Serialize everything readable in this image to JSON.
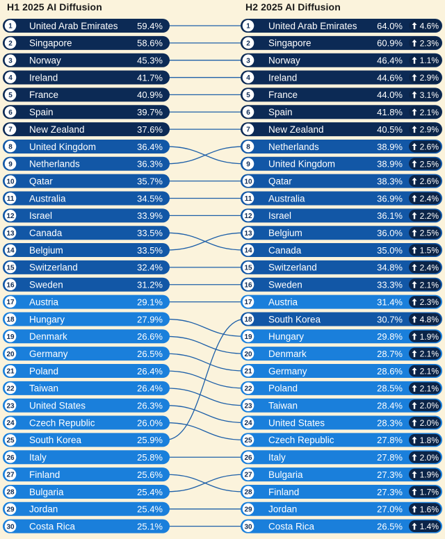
{
  "header": {
    "left_title": "H1 2025 AI Diffusion",
    "right_title": "H2 2025 AI Diffusion"
  },
  "colors": {
    "background": "#fbf3dc",
    "dark_navy": "#0c2a55",
    "mid_blue": "#1257a6",
    "bright_blue": "#1a7fdb",
    "change_pill": "#0b2448",
    "connector": "#1d5fa8"
  },
  "chart_data": {
    "type": "table",
    "h1": {
      "title": "H1 2025 AI Diffusion",
      "rows": [
        {
          "rank": "1",
          "country": "United Arab Emirates",
          "value": "59.4%"
        },
        {
          "rank": "2",
          "country": "Singapore",
          "value": "58.6%"
        },
        {
          "rank": "3",
          "country": "Norway",
          "value": "45.3%"
        },
        {
          "rank": "4",
          "country": "Ireland",
          "value": "41.7%"
        },
        {
          "rank": "5",
          "country": "France",
          "value": "40.9%"
        },
        {
          "rank": "6",
          "country": "Spain",
          "value": "39.7%"
        },
        {
          "rank": "7",
          "country": "New Zealand",
          "value": "37.6%"
        },
        {
          "rank": "8",
          "country": "United Kingdom",
          "value": "36.4%"
        },
        {
          "rank": "9",
          "country": "Netherlands",
          "value": "36.3%"
        },
        {
          "rank": "10",
          "country": "Qatar",
          "value": "35.7%"
        },
        {
          "rank": "11",
          "country": "Australia",
          "value": "34.5%"
        },
        {
          "rank": "12",
          "country": "Israel",
          "value": "33.9%"
        },
        {
          "rank": "13",
          "country": "Canada",
          "value": "33.5%"
        },
        {
          "rank": "14",
          "country": "Belgium",
          "value": "33.5%"
        },
        {
          "rank": "15",
          "country": "Switzerland",
          "value": "32.4%"
        },
        {
          "rank": "16",
          "country": "Sweden",
          "value": "31.2%"
        },
        {
          "rank": "17",
          "country": "Austria",
          "value": "29.1%"
        },
        {
          "rank": "18",
          "country": "Hungary",
          "value": "27.9%"
        },
        {
          "rank": "19",
          "country": "Denmark",
          "value": "26.6%"
        },
        {
          "rank": "20",
          "country": "Germany",
          "value": "26.5%"
        },
        {
          "rank": "21",
          "country": "Poland",
          "value": "26.4%"
        },
        {
          "rank": "22",
          "country": "Taiwan",
          "value": "26.4%"
        },
        {
          "rank": "23",
          "country": "United States",
          "value": "26.3%"
        },
        {
          "rank": "24",
          "country": "Czech Republic",
          "value": "26.0%"
        },
        {
          "rank": "25",
          "country": "South Korea",
          "value": "25.9%"
        },
        {
          "rank": "26",
          "country": "Italy",
          "value": "25.8%"
        },
        {
          "rank": "27",
          "country": "Finland",
          "value": "25.6%"
        },
        {
          "rank": "28",
          "country": "Bulgaria",
          "value": "25.4%"
        },
        {
          "rank": "29",
          "country": "Jordan",
          "value": "25.4%"
        },
        {
          "rank": "30",
          "country": "Costa Rica",
          "value": "25.1%"
        }
      ]
    },
    "h2": {
      "title": "H2 2025 AI Diffusion",
      "rows": [
        {
          "rank": "1",
          "country": "United Arab Emirates",
          "value": "64.0%",
          "change": "4.6%"
        },
        {
          "rank": "2",
          "country": "Singapore",
          "value": "60.9%",
          "change": "2.3%"
        },
        {
          "rank": "3",
          "country": "Norway",
          "value": "46.4%",
          "change": "1.1%"
        },
        {
          "rank": "4",
          "country": "Ireland",
          "value": "44.6%",
          "change": "2.9%"
        },
        {
          "rank": "5",
          "country": "France",
          "value": "44.0%",
          "change": "3.1%"
        },
        {
          "rank": "6",
          "country": "Spain",
          "value": "41.8%",
          "change": "2.1%"
        },
        {
          "rank": "7",
          "country": "New Zealand",
          "value": "40.5%",
          "change": "2.9%"
        },
        {
          "rank": "8",
          "country": "Netherlands",
          "value": "38.9%",
          "change": "2.6%"
        },
        {
          "rank": "9",
          "country": "United Kingdom",
          "value": "38.9%",
          "change": "2.5%"
        },
        {
          "rank": "10",
          "country": "Qatar",
          "value": "38.3%",
          "change": "2.6%"
        },
        {
          "rank": "11",
          "country": "Australia",
          "value": "36.9%",
          "change": "2.4%"
        },
        {
          "rank": "12",
          "country": "Israel",
          "value": "36.1%",
          "change": "2.2%"
        },
        {
          "rank": "13",
          "country": "Belgium",
          "value": "36.0%",
          "change": "2.5%"
        },
        {
          "rank": "14",
          "country": "Canada",
          "value": "35.0%",
          "change": "1.5%"
        },
        {
          "rank": "15",
          "country": "Switzerland",
          "value": "34.8%",
          "change": "2.4%"
        },
        {
          "rank": "16",
          "country": "Sweden",
          "value": "33.3%",
          "change": "2.1%"
        },
        {
          "rank": "17",
          "country": "Austria",
          "value": "31.4%",
          "change": "2.3%"
        },
        {
          "rank": "18",
          "country": "South Korea",
          "value": "30.7%",
          "change": "4.8%"
        },
        {
          "rank": "19",
          "country": "Hungary",
          "value": "29.8%",
          "change": "1.9%"
        },
        {
          "rank": "20",
          "country": "Denmark",
          "value": "28.7%",
          "change": "2.1%"
        },
        {
          "rank": "21",
          "country": "Germany",
          "value": "28.6%",
          "change": "2.1%"
        },
        {
          "rank": "22",
          "country": "Poland",
          "value": "28.5%",
          "change": "2.1%"
        },
        {
          "rank": "23",
          "country": "Taiwan",
          "value": "28.4%",
          "change": "2.0%"
        },
        {
          "rank": "24",
          "country": "United States",
          "value": "28.3%",
          "change": "2.0%"
        },
        {
          "rank": "25",
          "country": "Czech Republic",
          "value": "27.8%",
          "change": "1.8%"
        },
        {
          "rank": "26",
          "country": "Italy",
          "value": "27.8%",
          "change": "2.0%"
        },
        {
          "rank": "27",
          "country": "Bulgaria",
          "value": "27.3%",
          "change": "1.9%"
        },
        {
          "rank": "28",
          "country": "Finland",
          "value": "27.3%",
          "change": "1.7%"
        },
        {
          "rank": "29",
          "country": "Jordan",
          "value": "27.0%",
          "change": "1.6%"
        },
        {
          "rank": "30",
          "country": "Costa Rica",
          "value": "26.5%",
          "change": "1.4%"
        }
      ]
    }
  }
}
